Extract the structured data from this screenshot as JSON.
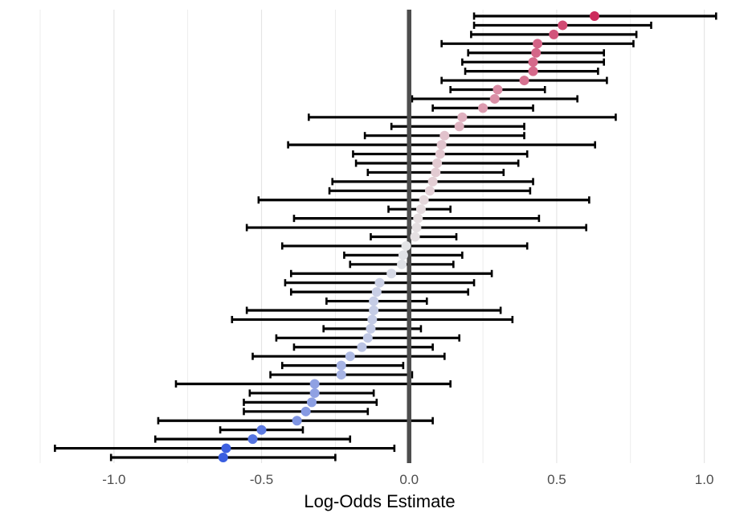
{
  "chart_data": {
    "type": "scatter",
    "subtype": "forest-plot",
    "title": "",
    "xlabel": "Log-Odds Estimate",
    "ylabel": "",
    "xlim": [
      -1.25,
      1.05
    ],
    "xticks": [
      -1.0,
      -0.5,
      0.0,
      0.5,
      1.0
    ],
    "xtick_labels": [
      "-1.0",
      "-0.5",
      "0.0",
      "0.5",
      "1.0"
    ],
    "reference_line_x": 0.0,
    "grid": "vertical major and minor lines",
    "legend": "none",
    "color_scale": {
      "low": "#3a5ee0",
      "mid": "#e6e6e6",
      "high": "#cc2a5c"
    },
    "colors": {
      "error_bar": "#000000",
      "reference_line": "#4d4d4d",
      "grid": "#e5e5e5"
    },
    "estimates": [
      {
        "estimate": 0.628,
        "lower": 0.22,
        "upper": 1.04
      },
      {
        "estimate": 0.52,
        "lower": 0.22,
        "upper": 0.82
      },
      {
        "estimate": 0.49,
        "lower": 0.21,
        "upper": 0.77
      },
      {
        "estimate": 0.435,
        "lower": 0.11,
        "upper": 0.76
      },
      {
        "estimate": 0.43,
        "lower": 0.2,
        "upper": 0.66
      },
      {
        "estimate": 0.42,
        "lower": 0.18,
        "upper": 0.66
      },
      {
        "estimate": 0.42,
        "lower": 0.19,
        "upper": 0.64
      },
      {
        "estimate": 0.39,
        "lower": 0.11,
        "upper": 0.67
      },
      {
        "estimate": 0.3,
        "lower": 0.14,
        "upper": 0.46
      },
      {
        "estimate": 0.29,
        "lower": 0.01,
        "upper": 0.57
      },
      {
        "estimate": 0.25,
        "lower": 0.08,
        "upper": 0.42
      },
      {
        "estimate": 0.18,
        "lower": -0.34,
        "upper": 0.7
      },
      {
        "estimate": 0.17,
        "lower": -0.06,
        "upper": 0.39
      },
      {
        "estimate": 0.12,
        "lower": -0.15,
        "upper": 0.39
      },
      {
        "estimate": 0.11,
        "lower": -0.41,
        "upper": 0.63
      },
      {
        "estimate": 0.105,
        "lower": -0.19,
        "upper": 0.4
      },
      {
        "estimate": 0.095,
        "lower": -0.18,
        "upper": 0.37
      },
      {
        "estimate": 0.09,
        "lower": -0.14,
        "upper": 0.32
      },
      {
        "estimate": 0.08,
        "lower": -0.26,
        "upper": 0.42
      },
      {
        "estimate": 0.07,
        "lower": -0.27,
        "upper": 0.41
      },
      {
        "estimate": 0.05,
        "lower": -0.51,
        "upper": 0.61
      },
      {
        "estimate": 0.04,
        "lower": -0.07,
        "upper": 0.14
      },
      {
        "estimate": 0.03,
        "lower": -0.39,
        "upper": 0.44
      },
      {
        "estimate": 0.025,
        "lower": -0.55,
        "upper": 0.6
      },
      {
        "estimate": 0.02,
        "lower": -0.13,
        "upper": 0.16
      },
      {
        "estimate": -0.01,
        "lower": -0.43,
        "upper": 0.4
      },
      {
        "estimate": -0.02,
        "lower": -0.22,
        "upper": 0.18
      },
      {
        "estimate": -0.025,
        "lower": -0.2,
        "upper": 0.15
      },
      {
        "estimate": -0.06,
        "lower": -0.4,
        "upper": 0.28
      },
      {
        "estimate": -0.1,
        "lower": -0.42,
        "upper": 0.22
      },
      {
        "estimate": -0.11,
        "lower": -0.4,
        "upper": 0.2
      },
      {
        "estimate": -0.12,
        "lower": -0.28,
        "upper": 0.06
      },
      {
        "estimate": -0.12,
        "lower": -0.55,
        "upper": 0.31
      },
      {
        "estimate": -0.125,
        "lower": -0.6,
        "upper": 0.35
      },
      {
        "estimate": -0.13,
        "lower": -0.29,
        "upper": 0.04
      },
      {
        "estimate": -0.14,
        "lower": -0.45,
        "upper": 0.17
      },
      {
        "estimate": -0.16,
        "lower": -0.39,
        "upper": 0.08
      },
      {
        "estimate": -0.2,
        "lower": -0.53,
        "upper": 0.12
      },
      {
        "estimate": -0.23,
        "lower": -0.43,
        "upper": -0.02
      },
      {
        "estimate": -0.23,
        "lower": -0.47,
        "upper": 0.01
      },
      {
        "estimate": -0.32,
        "lower": -0.79,
        "upper": 0.14
      },
      {
        "estimate": -0.32,
        "lower": -0.54,
        "upper": -0.12
      },
      {
        "estimate": -0.33,
        "lower": -0.56,
        "upper": -0.11
      },
      {
        "estimate": -0.35,
        "lower": -0.56,
        "upper": -0.14
      },
      {
        "estimate": -0.38,
        "lower": -0.85,
        "upper": 0.08
      },
      {
        "estimate": -0.5,
        "lower": -0.64,
        "upper": -0.36
      },
      {
        "estimate": -0.53,
        "lower": -0.86,
        "upper": -0.2
      },
      {
        "estimate": -0.62,
        "lower": -1.2,
        "upper": -0.05
      },
      {
        "estimate": -0.63,
        "lower": -1.01,
        "upper": -0.25
      }
    ]
  }
}
